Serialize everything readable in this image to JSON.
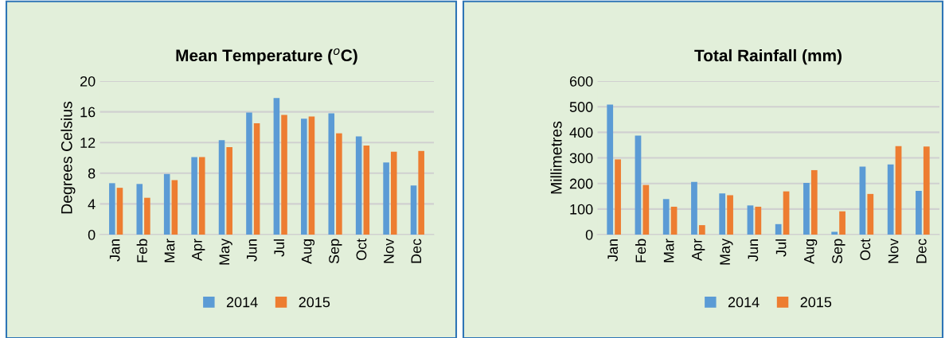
{
  "chart_data": [
    {
      "type": "bar",
      "title": "Mean Temperature ($^{o}$C)",
      "ylabel": "Degrees Celsius",
      "categories": [
        "Jan",
        "Feb",
        "Mar",
        "Apr",
        "May",
        "Jun",
        "Jul",
        "Aug",
        "Sep",
        "Oct",
        "Nov",
        "Dec"
      ],
      "series": [
        {
          "name": "2014",
          "color": "#5b9bd5",
          "values": [
            6.7,
            6.6,
            7.9,
            10.1,
            12.3,
            15.9,
            17.8,
            15.1,
            15.8,
            12.8,
            9.4,
            6.4
          ]
        },
        {
          "name": "2015",
          "color": "#ed7d31",
          "values": [
            6.1,
            4.8,
            7.1,
            10.1,
            11.4,
            14.5,
            15.6,
            15.4,
            13.2,
            11.6,
            10.8,
            10.9
          ]
        }
      ],
      "ylim": [
        0,
        20
      ],
      "yticks": [
        0,
        4,
        8,
        12,
        16,
        20
      ],
      "grid": "y",
      "legend": "bottom"
    },
    {
      "type": "bar",
      "title": "Total Rainfall (mm)",
      "ylabel": "Millimetres",
      "categories": [
        "Jan",
        "Feb",
        "Mar",
        "Apr",
        "May",
        "Jun",
        "Jul",
        "Aug",
        "Sep",
        "Oct",
        "Nov",
        "Dec"
      ],
      "series": [
        {
          "name": "2014",
          "color": "#5b9bd5",
          "values": [
            508,
            387,
            139,
            206,
            161,
            114,
            41,
            202,
            11,
            266,
            274,
            171
          ]
        },
        {
          "name": "2015",
          "color": "#ed7d31",
          "values": [
            294,
            194,
            109,
            37,
            154,
            109,
            169,
            252,
            91,
            159,
            346,
            344
          ]
        }
      ],
      "ylim": [
        0,
        600
      ],
      "yticks": [
        0,
        100,
        200,
        300,
        400,
        500,
        600
      ],
      "grid": "y",
      "legend": "bottom"
    }
  ]
}
